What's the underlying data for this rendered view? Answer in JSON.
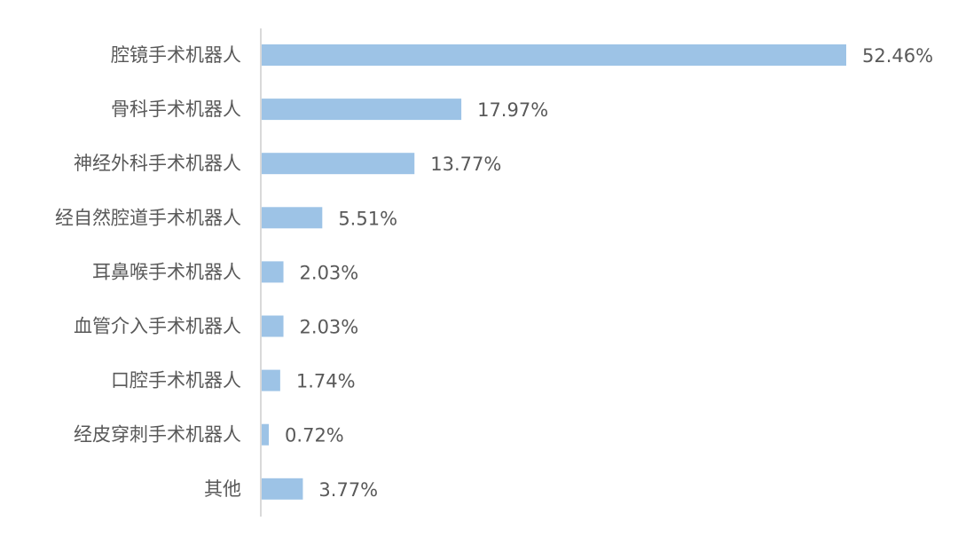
{
  "chart_data": {
    "type": "bar",
    "orientation": "horizontal",
    "categories": [
      "腔镜手术机器人",
      "骨科手术机器人",
      "神经外科手术机器人",
      "经自然腔道手术机器人",
      "耳鼻喉手术机器人",
      "血管介入手术机器人",
      "口腔手术机器人",
      "经皮穿刺手术机器人",
      "其他"
    ],
    "values": [
      52.46,
      17.97,
      13.77,
      5.51,
      2.03,
      2.03,
      1.74,
      0.72,
      3.77
    ],
    "value_labels": [
      "52.46%",
      "17.97%",
      "13.77%",
      "5.51%",
      "2.03%",
      "2.03%",
      "1.74%",
      "0.72%",
      "3.77%"
    ],
    "xlim": [
      0,
      60
    ],
    "grid": false,
    "legend": "none",
    "colors": {
      "bar": "#9DC3E6",
      "axis": "#D9D9D9",
      "text": "#595959"
    }
  }
}
